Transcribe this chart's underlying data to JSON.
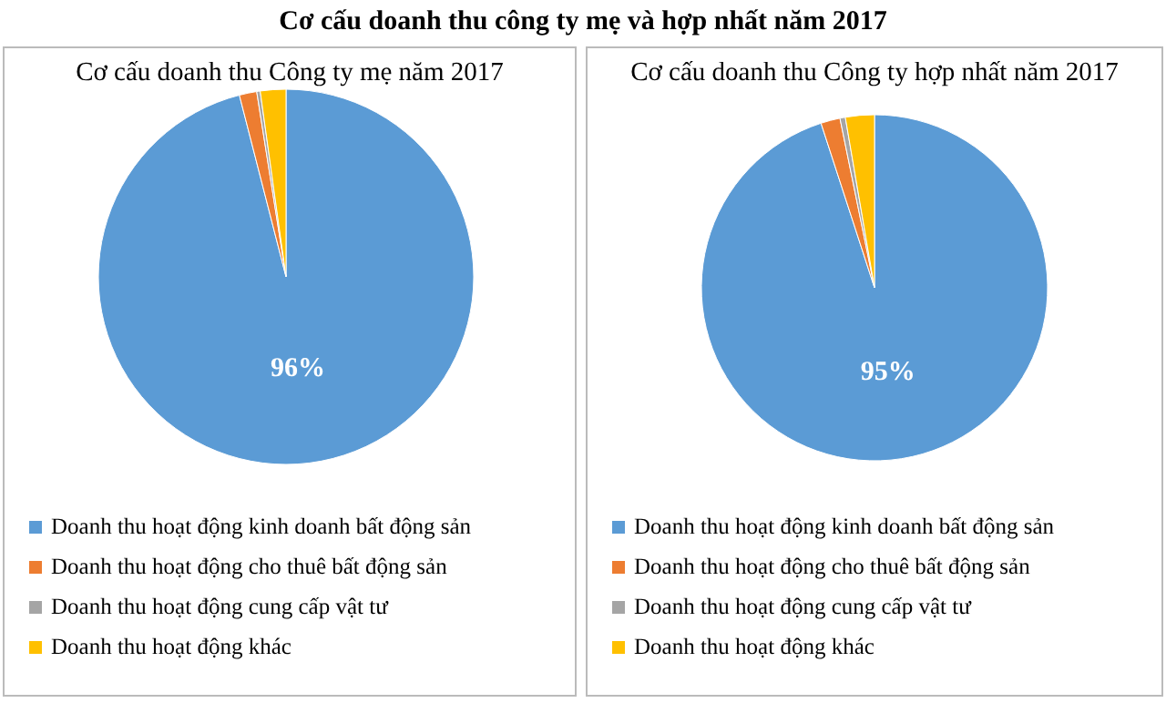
{
  "chart_data": [
    {
      "type": "pie",
      "title": "Cơ cấu doanh thu công ty mẹ và hợp nhất năm 2017",
      "subtitle": "Cơ cấu doanh thu Công ty mẹ năm 2017",
      "categories": [
        "Doanh thu hoạt động kinh doanh bất động sản",
        "Doanh thu hoạt động cho thuê bất động sản",
        "Doanh thu hoạt động cung cấp vật tư",
        "Doanh thu hoạt động khác"
      ],
      "values": [
        96,
        1.5,
        0.3,
        2.2
      ],
      "colors": [
        "#5b9bd5",
        "#ed7d31",
        "#a5a5a5",
        "#ffc000"
      ],
      "value_labels": [
        "96%",
        null,
        null,
        null
      ],
      "legend": "bottom"
    },
    {
      "type": "pie",
      "subtitle": "Cơ cấu doanh thu Công ty hợp nhất năm 2017",
      "categories": [
        "Doanh thu hoạt động kinh doanh bất động sản",
        "Doanh thu hoạt động cho thuê bất động sản",
        "Doanh thu hoạt động cung cấp vật tư",
        "Doanh thu hoạt động khác"
      ],
      "values": [
        95,
        1.8,
        0.5,
        2.7
      ],
      "colors": [
        "#5b9bd5",
        "#ed7d31",
        "#a5a5a5",
        "#ffc000"
      ],
      "value_labels": [
        "95%",
        null,
        null,
        null
      ],
      "legend": "bottom"
    }
  ]
}
